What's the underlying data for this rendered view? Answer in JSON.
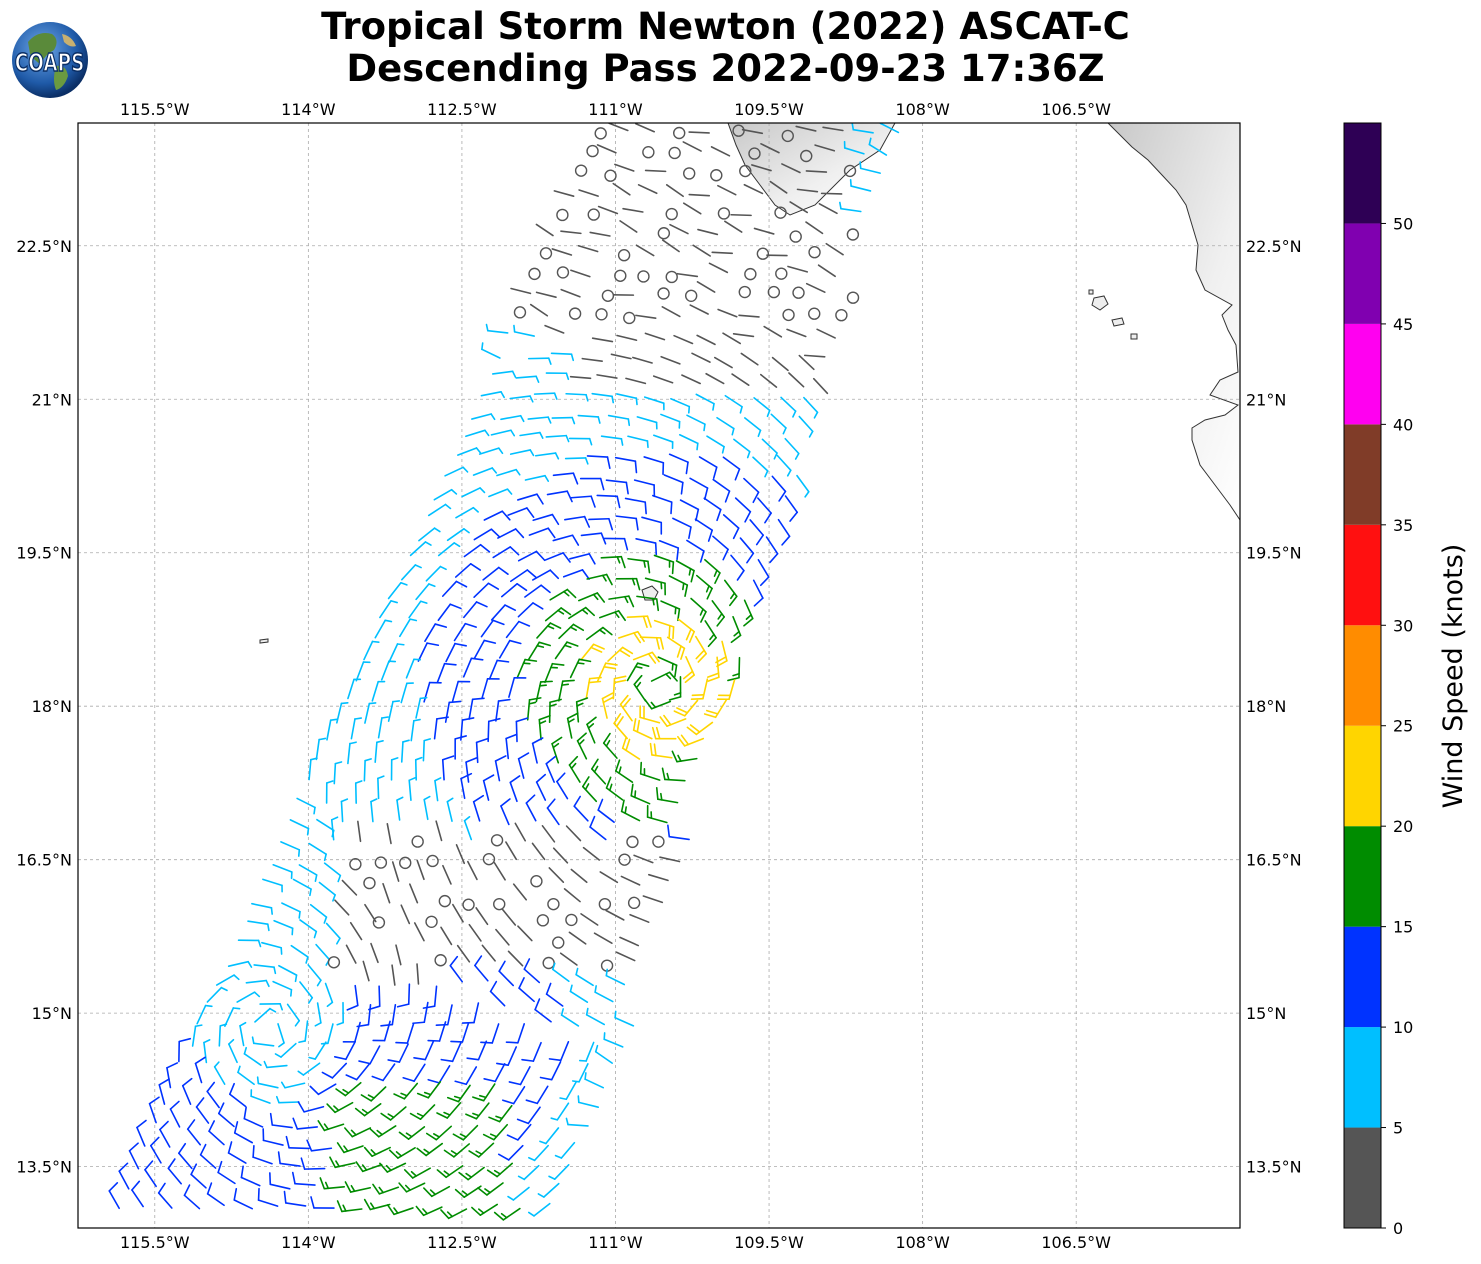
{
  "header": {
    "logo_text": "COAPS",
    "title_line1": "Tropical Storm Newton (2022) ASCAT-C",
    "title_line2": "Descending Pass 2022-09-23 17:36Z"
  },
  "map": {
    "lon_range": [
      -116.25,
      -104.9
    ],
    "lat_range": [
      12.9,
      23.7
    ],
    "lon_ticks": [
      "115.5°W",
      "114°W",
      "112.5°W",
      "111°W",
      "109.5°W",
      "108°W",
      "106.5°W"
    ],
    "lat_ticks": [
      "22.5°N",
      "21°N",
      "19.5°N",
      "18°N",
      "16.5°N",
      "15°N",
      "13.5°N"
    ],
    "grid": "dashed",
    "storm_center": {
      "lon": -110.6,
      "lat": 18.2
    }
  },
  "colorbar": {
    "label": "Wind Speed (knots)",
    "ticks": [
      "0",
      "5",
      "10",
      "15",
      "20",
      "25",
      "30",
      "35",
      "40",
      "45",
      "50"
    ],
    "bins": [
      {
        "min": 0,
        "max": 5,
        "color": "#555555"
      },
      {
        "min": 5,
        "max": 10,
        "color": "#00bfff"
      },
      {
        "min": 10,
        "max": 15,
        "color": "#0033ff"
      },
      {
        "min": 15,
        "max": 20,
        "color": "#008c00"
      },
      {
        "min": 20,
        "max": 25,
        "color": "#ffd500"
      },
      {
        "min": 25,
        "max": 30,
        "color": "#ff8c00"
      },
      {
        "min": 30,
        "max": 35,
        "color": "#ff1010"
      },
      {
        "min": 35,
        "max": 40,
        "color": "#803c28"
      },
      {
        "min": 40,
        "max": 45,
        "color": "#ff00f0"
      },
      {
        "min": 45,
        "max": 50,
        "color": "#8000b0"
      },
      {
        "min": 50,
        "max": 55,
        "color": "#2e0055"
      }
    ]
  }
}
